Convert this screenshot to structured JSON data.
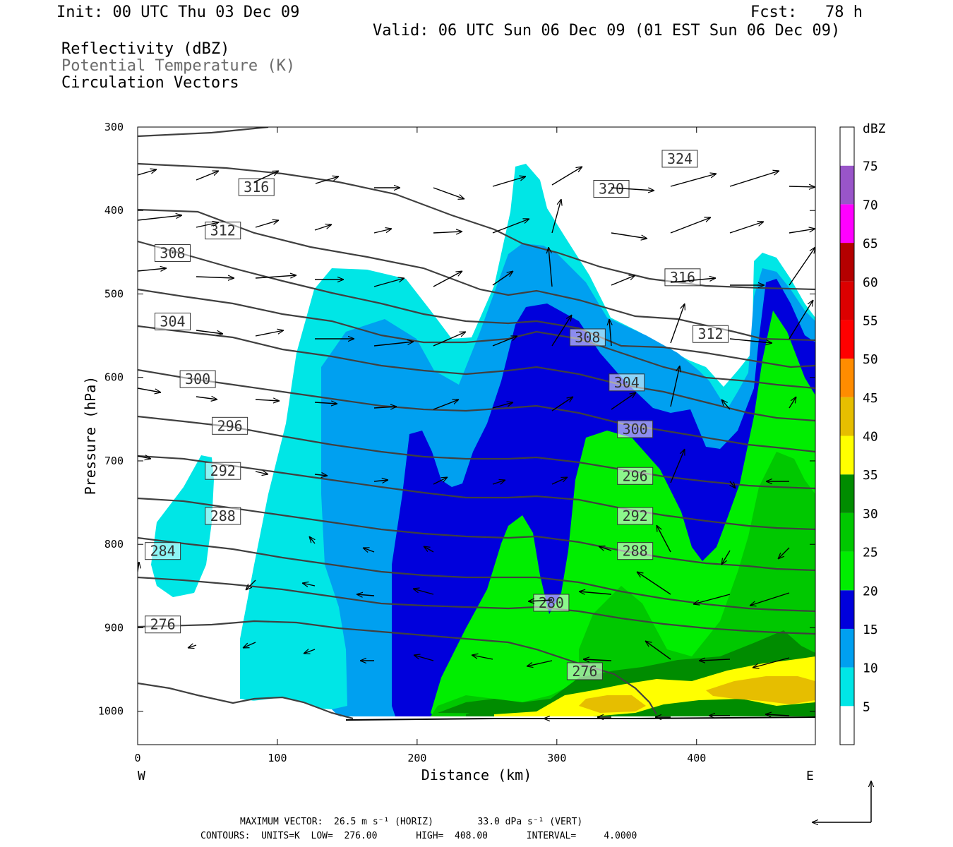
{
  "header": {
    "init": "Init: 00 UTC Thu 03 Dec 09",
    "fcst": "Fcst:   78 h",
    "valid": "Valid: 06 UTC Sun 06 Dec 09 (01 EST Sun 06 Dec 09)",
    "field1": "Reflectivity (dBZ)",
    "field2": "Potential Temperature (K)",
    "field3": "Circulation Vectors"
  },
  "chart_data": {
    "type": "heatmap",
    "xlabel": "Distance (km)",
    "ylabel": "Pressure (hPa)",
    "xlim": [
      0,
      485
    ],
    "ylim": [
      1040,
      300
    ],
    "x_ticks": [
      0,
      100,
      200,
      300,
      400
    ],
    "y_ticks": [
      300,
      400,
      500,
      600,
      700,
      800,
      900,
      1000
    ],
    "x_end_labels": {
      "left": "W",
      "right": "E"
    },
    "colorbar": {
      "unit": "dBZ",
      "levels": [
        5,
        10,
        15,
        20,
        25,
        30,
        35,
        40,
        45,
        50,
        55,
        60,
        65,
        70,
        75
      ],
      "colors": [
        "#ffffff",
        "#00e6e6",
        "#00a0f0",
        "#0000dc",
        "#00ee00",
        "#00c800",
        "#008c00",
        "#ffff00",
        "#e6be00",
        "#ff8c00",
        "#ff0000",
        "#dc0000",
        "#b40000",
        "#ff00ff",
        "#9955c9",
        "#ffffff"
      ]
    },
    "theta_contours": {
      "label_values": [
        276,
        280,
        284,
        288,
        292,
        296,
        300,
        304,
        308,
        312,
        316,
        320,
        324
      ],
      "labels": [
        {
          "text": "324",
          "x": 388,
          "p": 338
        },
        {
          "text": "320",
          "x": 339,
          "p": 374
        },
        {
          "text": "316",
          "x": 85,
          "p": 372
        },
        {
          "text": "316",
          "x": 390,
          "p": 480
        },
        {
          "text": "312",
          "x": 61,
          "p": 424
        },
        {
          "text": "312",
          "x": 410,
          "p": 548
        },
        {
          "text": "308",
          "x": 25,
          "p": 451
        },
        {
          "text": "308",
          "x": 322,
          "p": 552
        },
        {
          "text": "304",
          "x": 25,
          "p": 533
        },
        {
          "text": "304",
          "x": 350,
          "p": 606
        },
        {
          "text": "300",
          "x": 43,
          "p": 602
        },
        {
          "text": "300",
          "x": 356,
          "p": 662
        },
        {
          "text": "296",
          "x": 66,
          "p": 658
        },
        {
          "text": "296",
          "x": 356,
          "p": 718
        },
        {
          "text": "292",
          "x": 61,
          "p": 712
        },
        {
          "text": "292",
          "x": 356,
          "p": 766
        },
        {
          "text": "288",
          "x": 61,
          "p": 766
        },
        {
          "text": "288",
          "x": 356,
          "p": 808
        },
        {
          "text": "284",
          "x": 18,
          "p": 808
        },
        {
          "text": "280",
          "x": 296,
          "p": 870
        },
        {
          "text": "276",
          "x": 18,
          "p": 896
        },
        {
          "text": "276",
          "x": 320,
          "p": 952
        }
      ]
    },
    "footer": {
      "max_vector": "MAXIMUM VECTOR:  26.5 m s⁻¹ (HORIZ)        33.0 dPa s⁻¹ (VERT)",
      "contours": "CONTOURS:  UNITS=K  LOW=  276.00       HIGH=  408.00       INTERVAL=     4.0000"
    }
  }
}
